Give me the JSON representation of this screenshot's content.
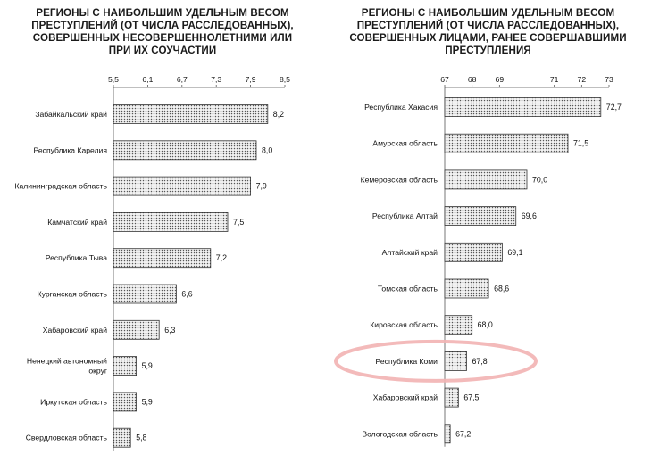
{
  "chart_data": [
    {
      "type": "bar",
      "orientation": "horizontal",
      "title_lines": [
        "РЕГИОНЫ С НАИБОЛЬШИМ УДЕЛЬНЫМ ВЕСОМ",
        "ПРЕСТУПЛЕНИЙ (ОТ ЧИСЛА РАССЛЕДОВАННЫХ),",
        "СОВЕРШЕННЫХ НЕСОВЕРШЕННОЛЕТНИМИ ИЛИ",
        "ПРИ ИХ СОУЧАСТИИ"
      ],
      "categories": [
        [
          "Забайкальский край"
        ],
        [
          "Республика Карелия"
        ],
        [
          "Калининградская область"
        ],
        [
          "Камчатский край"
        ],
        [
          "Республика Тыва"
        ],
        [
          "Курганская область"
        ],
        [
          "Хабаровский край"
        ],
        [
          "Ненецкий автономный",
          "округ"
        ],
        [
          "Иркутская область"
        ],
        [
          "Свердловская область"
        ]
      ],
      "values": [
        8.2,
        8.0,
        7.9,
        7.5,
        7.2,
        6.6,
        6.3,
        5.9,
        5.9,
        5.8
      ],
      "value_labels": [
        "8,2",
        "8,0",
        "7,9",
        "7,5",
        "7,2",
        "6,6",
        "6,3",
        "5,9",
        "5,9",
        "5,8"
      ],
      "ticks": [
        5.5,
        6.1,
        6.7,
        7.3,
        7.9,
        8.5
      ],
      "tick_labels": [
        "5,5",
        "6,1",
        "6,7",
        "7,3",
        "7,9",
        "8,5"
      ],
      "xlim": [
        5.5,
        8.5
      ],
      "axis_position": "top",
      "bar_fill": "dotted grey",
      "highlight_index": null
    },
    {
      "type": "bar",
      "orientation": "horizontal",
      "title_lines": [
        "РЕГИОНЫ С НАИБОЛЬШИМ УДЕЛЬНЫМ ВЕСОМ",
        "ПРЕСТУПЛЕНИЙ (ОТ ЧИСЛА РАССЛЕДОВАННЫХ),",
        "СОВЕРШЕННЫХ ЛИЦАМИ, РАНЕЕ СОВЕРШАВШИМИ",
        "ПРЕСТУПЛЕНИЯ"
      ],
      "categories": [
        [
          "Республика Хакасия"
        ],
        [
          "Амурская область"
        ],
        [
          "Кемеровская область"
        ],
        [
          "Республика Алтай"
        ],
        [
          "Алтайский край"
        ],
        [
          "Томская область"
        ],
        [
          "Кировская область"
        ],
        [
          "Республика Коми"
        ],
        [
          "Хабаровский край"
        ],
        [
          "Вологодская область"
        ]
      ],
      "values": [
        72.7,
        71.5,
        70.0,
        69.6,
        69.1,
        68.6,
        68.0,
        67.8,
        67.5,
        67.2
      ],
      "value_labels": [
        "72,7",
        "71,5",
        "70,0",
        "69,6",
        "69,1",
        "68,6",
        "68,0",
        "67,8",
        "67,5",
        "67,2"
      ],
      "ticks": [
        67,
        68,
        69,
        71,
        72,
        73
      ],
      "tick_labels": [
        "67",
        "68",
        "69",
        "71",
        "72",
        "73"
      ],
      "xlim": [
        67,
        73
      ],
      "axis_position": "top",
      "bar_fill": "dotted grey",
      "highlight_index": 7,
      "highlight_color": "#f2b3b3"
    }
  ]
}
